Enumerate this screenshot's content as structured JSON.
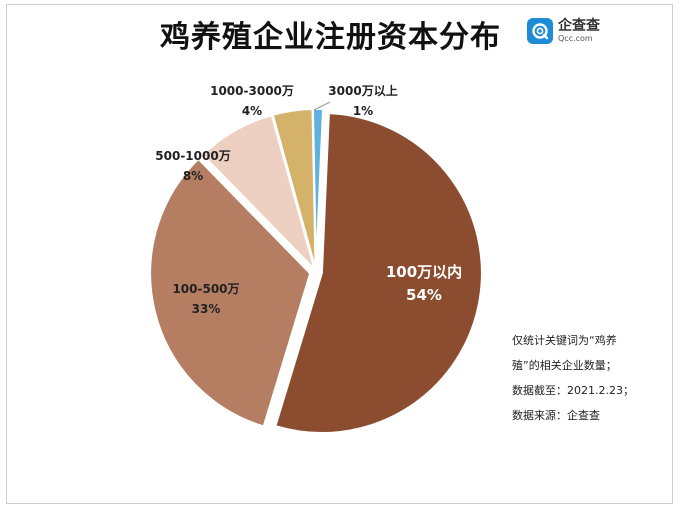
{
  "title": "鸡养殖企业注册资本分布",
  "logo": {
    "name_cn": "企查查",
    "name_en": "Qcc.com",
    "icon": "qcc-logo-icon",
    "color": "#1e8bd6"
  },
  "note": [
    "仅统计关键词为“鸡养",
    "殖”的相关企业数量；",
    "数据截至：2021.2.23；",
    "数据来源：企查查"
  ],
  "chart_data": {
    "type": "pie",
    "title": "鸡养殖企业注册资本分布",
    "slices": [
      {
        "label": "100万以内",
        "value": 54,
        "pct_label": "54%",
        "color": "#8b4c2f"
      },
      {
        "label": "100-500万",
        "value": 33,
        "pct_label": "33%",
        "color": "#b57e63"
      },
      {
        "label": "500-1000万",
        "value": 8,
        "pct_label": "8%",
        "color": "#eed0c3"
      },
      {
        "label": "1000-3000万",
        "value": 4,
        "pct_label": "4%",
        "color": "#d4b26a"
      },
      {
        "label": "3000万以上",
        "value": 1,
        "pct_label": "1%",
        "color": "#5fb2dd"
      }
    ],
    "legend": "none"
  }
}
